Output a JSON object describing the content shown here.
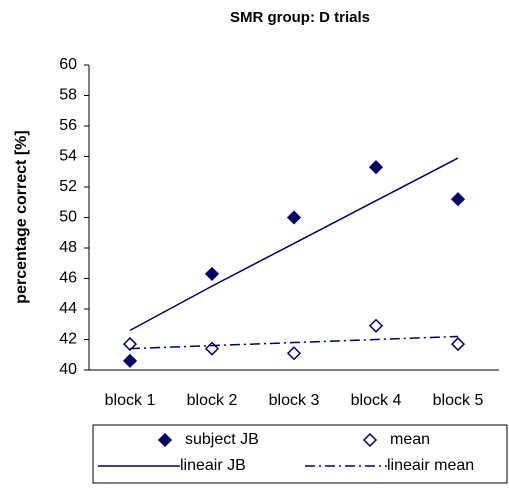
{
  "chart_data": {
    "type": "scatter-trend",
    "title": "SMR group: D trials",
    "y_label": "percentage correct [%]",
    "categories": [
      "block 1",
      "block 2",
      "block 3",
      "block 4",
      "block 5"
    ],
    "ylim": [
      40,
      60
    ],
    "yticks": [
      40,
      42,
      44,
      46,
      48,
      50,
      52,
      54,
      56,
      58,
      60
    ],
    "grid": false,
    "series": [
      {
        "name": "subject JB",
        "color": "#000066",
        "marker": "filled",
        "values": [
          40.6,
          46.3,
          50.0,
          53.3,
          51.2
        ]
      },
      {
        "name": "mean",
        "color": "#000066",
        "marker": "open",
        "values": [
          41.7,
          41.4,
          41.1,
          42.9,
          41.7
        ]
      },
      {
        "name": "lineair JB",
        "color": "#000066",
        "line": "solid",
        "values": [
          42.6,
          45.5,
          48.3,
          51.1,
          53.9
        ]
      },
      {
        "name": "lineair mean",
        "color": "#000066",
        "line": "dash-dot",
        "values": [
          41.4,
          41.6,
          41.8,
          42.0,
          42.2
        ]
      }
    ]
  }
}
